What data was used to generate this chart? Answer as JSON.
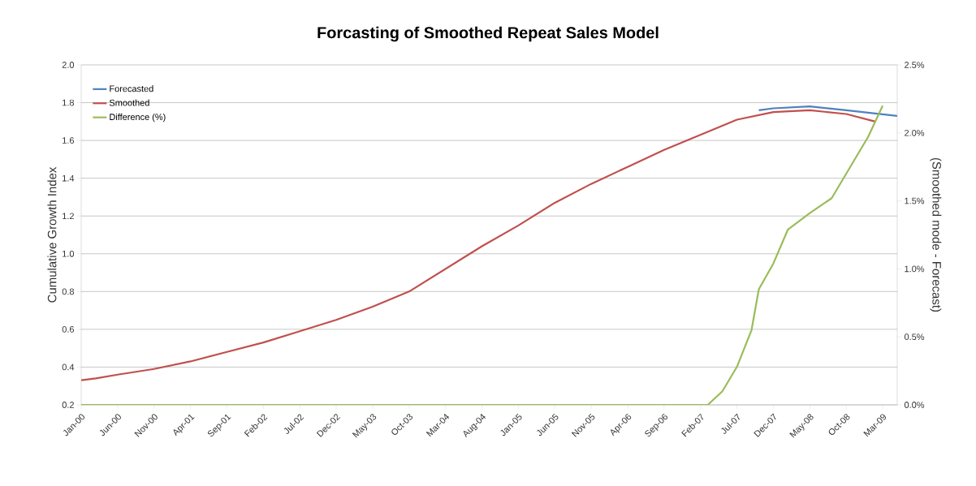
{
  "chart_data": {
    "type": "line",
    "title": "Forcasting of Smoothed Repeat Sales Model",
    "ylabel": "Cumulative Growth Index",
    "y2label": "(Smoothed mode - Forecast)",
    "xlim": [
      "2000-01",
      "2009-05"
    ],
    "xticks": [
      {
        "value": "2000-01",
        "label": "Jan-00"
      },
      {
        "value": "2000-06",
        "label": "Jun-00"
      },
      {
        "value": "2000-11",
        "label": "Nov-00"
      },
      {
        "value": "2001-04",
        "label": "Apr-01"
      },
      {
        "value": "2001-09",
        "label": "Sep-01"
      },
      {
        "value": "2002-02",
        "label": "Feb-02"
      },
      {
        "value": "2002-07",
        "label": "Jul-02"
      },
      {
        "value": "2002-12",
        "label": "Dec-02"
      },
      {
        "value": "2003-05",
        "label": "May-03"
      },
      {
        "value": "2003-10",
        "label": "Oct-03"
      },
      {
        "value": "2004-03",
        "label": "Mar-04"
      },
      {
        "value": "2004-08",
        "label": "Aug-04"
      },
      {
        "value": "2005-01",
        "label": "Jan-05"
      },
      {
        "value": "2005-06",
        "label": "Jun-05"
      },
      {
        "value": "2005-11",
        "label": "Nov-05"
      },
      {
        "value": "2006-04",
        "label": "Apr-06"
      },
      {
        "value": "2006-09",
        "label": "Sep-06"
      },
      {
        "value": "2007-02",
        "label": "Feb-07"
      },
      {
        "value": "2007-07",
        "label": "Jul-07"
      },
      {
        "value": "2007-12",
        "label": "Dec-07"
      },
      {
        "value": "2008-05",
        "label": "May-08"
      },
      {
        "value": "2008-10",
        "label": "Oct-08"
      },
      {
        "value": "2009-03",
        "label": "Mar-09"
      }
    ],
    "ylim": [
      0.2,
      2.0
    ],
    "yticks": [
      {
        "value": 0.2,
        "label": "0.2"
      },
      {
        "value": 0.4,
        "label": "0.4"
      },
      {
        "value": 0.6,
        "label": "0.6"
      },
      {
        "value": 0.8,
        "label": "0.8"
      },
      {
        "value": 1.0,
        "label": "1.0"
      },
      {
        "value": 1.2,
        "label": "1.2"
      },
      {
        "value": 1.4,
        "label": "1.4"
      },
      {
        "value": 1.6,
        "label": "1.6"
      },
      {
        "value": 1.8,
        "label": "1.8"
      },
      {
        "value": 2.0,
        "label": "2.0"
      }
    ],
    "y2lim": [
      0,
      2.5
    ],
    "y2ticks": [
      {
        "value": 0,
        "label": "0.0%"
      },
      {
        "value": 0.5,
        "label": "0.5%"
      },
      {
        "value": 1.0,
        "label": "1.0%"
      },
      {
        "value": 1.5,
        "label": "1.5%"
      },
      {
        "value": 2.0,
        "label": "2.0%"
      },
      {
        "value": 2.5,
        "label": "2.5%"
      }
    ],
    "grid": "y",
    "legend": "top left",
    "marker": "none",
    "line_style": "solid",
    "series": [
      {
        "name": "Forecasted",
        "color": "#4f81bd",
        "x": [
          "2007-10",
          "2007-12",
          "2008-05",
          "2008-10",
          "2009-05"
        ],
        "values": [
          1.76,
          1.77,
          1.78,
          1.76,
          1.73
        ]
      },
      {
        "name": "Smoothed",
        "color": "#c0504d",
        "x": [
          "2000-01",
          "2000-03",
          "2000-06",
          "2000-11",
          "2001-04",
          "2001-09",
          "2002-02",
          "2002-07",
          "2002-12",
          "2003-05",
          "2003-10",
          "2004-03",
          "2004-08",
          "2005-01",
          "2005-06",
          "2005-11",
          "2006-04",
          "2006-09",
          "2007-02",
          "2007-07",
          "2007-12",
          "2008-05",
          "2008-10",
          "2009-02"
        ],
        "values": [
          0.33,
          0.34,
          0.36,
          0.39,
          0.43,
          0.48,
          0.53,
          0.59,
          0.65,
          0.72,
          0.8,
          0.92,
          1.04,
          1.15,
          1.27,
          1.37,
          1.46,
          1.55,
          1.63,
          1.71,
          1.75,
          1.76,
          1.74,
          1.7
        ]
      },
      {
        "name": "Difference (%)",
        "color": "#9bbb59",
        "axis": "y2",
        "x": [
          "2000-01",
          "2007-03",
          "2007-05",
          "2007-07",
          "2007-09",
          "2007-10",
          "2007-12",
          "2008-02",
          "2008-05",
          "2008-08",
          "2008-10",
          "2009-01",
          "2009-03"
        ],
        "values": [
          0,
          0,
          0.1,
          0.28,
          0.55,
          0.85,
          1.04,
          1.29,
          1.41,
          1.52,
          1.7,
          1.97,
          2.2
        ]
      }
    ]
  }
}
